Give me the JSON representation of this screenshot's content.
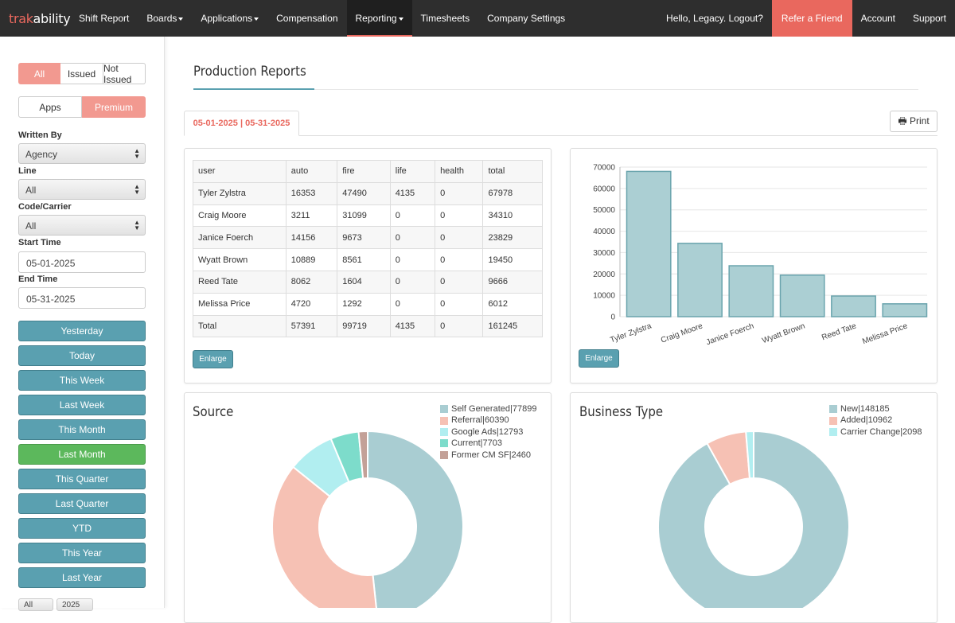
{
  "nav": {
    "logo_a": "trak",
    "logo_b": "ability",
    "items": [
      {
        "label": "Shift Report",
        "caret": false
      },
      {
        "label": "Boards",
        "caret": true
      },
      {
        "label": "Applications",
        "caret": true
      },
      {
        "label": "Compensation",
        "caret": false
      },
      {
        "label": "Reporting",
        "caret": true,
        "active": true
      },
      {
        "label": "Timesheets",
        "caret": false
      },
      {
        "label": "Company Settings",
        "caret": false
      }
    ],
    "greeting": "Hello, Legacy. Logout?",
    "refer": "Refer a Friend",
    "account": "Account",
    "support": "Support",
    "accent_color": "#e9685e"
  },
  "sidebar": {
    "issue_filter": [
      "All",
      "Issued",
      "Not Issued"
    ],
    "mode": [
      "Apps",
      "Premium"
    ],
    "written_by_label": "Written By",
    "written_by_value": "Agency",
    "line_label": "Line",
    "line_value": "All",
    "code_label": "Code/Carrier",
    "code_value": "All",
    "start_label": "Start Time",
    "start_value": "05-01-2025",
    "end_label": "End Time",
    "end_value": "05-31-2025",
    "ranges": [
      "Yesterday",
      "Today",
      "This Week",
      "Last Week",
      "This Month",
      "Last Month",
      "This Quarter",
      "Last Quarter",
      "YTD",
      "This Year",
      "Last Year"
    ],
    "selected_range": "Last Month",
    "bottom_select_1": "All",
    "bottom_select_2": "2025"
  },
  "main": {
    "title": "Production Reports",
    "tab_label": "05-01-2025 | 05-31-2025",
    "print_label": "Print",
    "enlarge_label": "Enlarge"
  },
  "table": {
    "headers": [
      "user",
      "auto",
      "fire",
      "life",
      "health",
      "total"
    ],
    "rows": [
      [
        "Tyler Zylstra",
        "16353",
        "47490",
        "4135",
        "0",
        "67978"
      ],
      [
        "Craig Moore",
        "3211",
        "31099",
        "0",
        "0",
        "34310"
      ],
      [
        "Janice Foerch",
        "14156",
        "9673",
        "0",
        "0",
        "23829"
      ],
      [
        "Wyatt Brown",
        "10889",
        "8561",
        "0",
        "0",
        "19450"
      ],
      [
        "Reed Tate",
        "8062",
        "1604",
        "0",
        "0",
        "9666"
      ],
      [
        "Melissa Price",
        "4720",
        "1292",
        "0",
        "0",
        "6012"
      ],
      [
        "Total",
        "57391",
        "99719",
        "4135",
        "0",
        "161245"
      ]
    ]
  },
  "chart_data": [
    {
      "type": "bar",
      "categories": [
        "Tyler Zylstra",
        "Craig Moore",
        "Janice Foerch",
        "Wyatt Brown",
        "Reed Tate",
        "Melissa Price"
      ],
      "values": [
        67978,
        34310,
        23829,
        19450,
        9666,
        6012
      ],
      "ylim": [
        0,
        70000
      ],
      "yticks": [
        0,
        10000,
        20000,
        30000,
        40000,
        50000,
        60000,
        70000
      ],
      "grid": true,
      "color": "#abcfd3"
    },
    {
      "type": "pie",
      "title": "Source",
      "labels": [
        "Self Generated|77899",
        "Referral|60390",
        "Google Ads|12793",
        "Current|7703",
        "Former CM SF|2460"
      ],
      "values": [
        77899,
        60390,
        12793,
        7703,
        2460
      ],
      "colors": [
        "#a9cdd2",
        "#f6c1b4",
        "#b1eef0",
        "#7ddccb",
        "#c3a198"
      ],
      "legend": "top-right"
    },
    {
      "type": "pie",
      "title": "Business Type",
      "labels": [
        "New|148185",
        "Added|10962",
        "Carrier Change|2098"
      ],
      "values": [
        148185,
        10962,
        2098
      ],
      "colors": [
        "#a9cdd2",
        "#f6c1b4",
        "#b1eef0"
      ],
      "legend": "top-right"
    }
  ]
}
